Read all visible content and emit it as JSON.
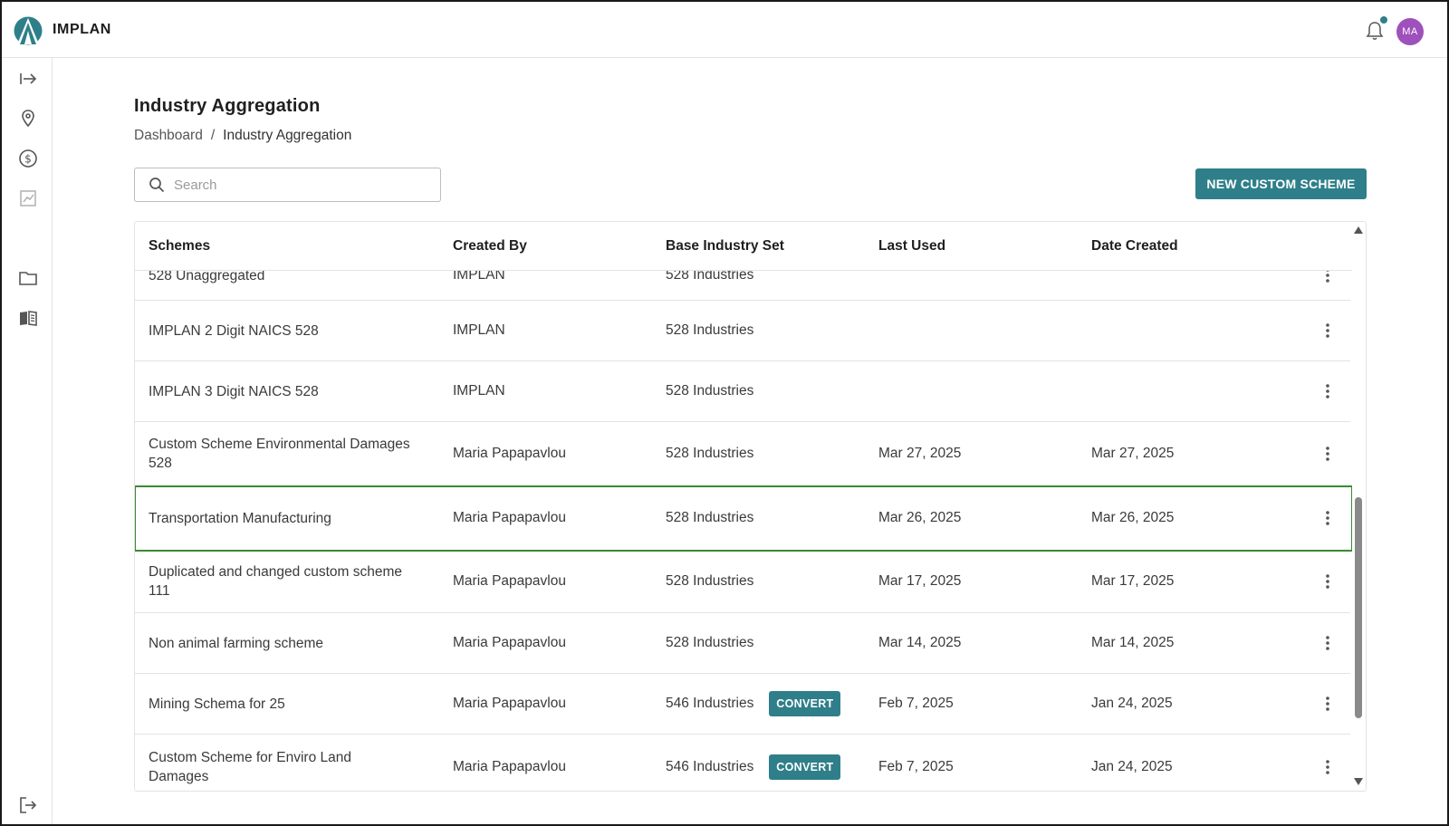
{
  "header": {
    "app_name": "IMPLAN",
    "avatar_initials": "MA",
    "accent_color": "#2f7f8a",
    "avatar_color": "#9e50bd"
  },
  "sidebar": {
    "items": [
      {
        "icon": "expand-sidebar-icon"
      },
      {
        "icon": "map-pin-icon"
      },
      {
        "icon": "dollar-circle-icon"
      },
      {
        "icon": "chart-icon"
      },
      {
        "icon": "folder-icon"
      },
      {
        "icon": "book-icon"
      },
      {
        "icon": "logout-icon"
      }
    ]
  },
  "page": {
    "title": "Industry Aggregation",
    "breadcrumb": {
      "root": "Dashboard",
      "separator": "/",
      "current": "Industry Aggregation"
    },
    "search_placeholder": "Search",
    "new_button_label": "NEW CUSTOM SCHEME"
  },
  "table": {
    "columns": [
      "Schemes",
      "Created By",
      "Base Industry Set",
      "Last Used",
      "Date Created"
    ],
    "convert_label": "CONVERT",
    "rows": [
      {
        "scheme": "528 Unaggregated",
        "created_by": "IMPLAN",
        "base": "528 Industries",
        "last_used": "",
        "date_created": ""
      },
      {
        "scheme": "IMPLAN 2 Digit NAICS 528",
        "created_by": "IMPLAN",
        "base": "528 Industries",
        "last_used": "",
        "date_created": ""
      },
      {
        "scheme": "IMPLAN 3 Digit NAICS 528",
        "created_by": "IMPLAN",
        "base": "528 Industries",
        "last_used": "",
        "date_created": ""
      },
      {
        "scheme": "Custom Scheme Environmental Damages 528",
        "created_by": "Maria Papapavlou",
        "base": "528 Industries",
        "last_used": "Mar 27, 2025",
        "date_created": "Mar 27, 2025"
      },
      {
        "scheme": "Transportation Manufacturing",
        "created_by": "Maria Papapavlou",
        "base": "528 Industries",
        "last_used": "Mar 26, 2025",
        "date_created": "Mar 26, 2025",
        "selected": true
      },
      {
        "scheme": "Duplicated and changed custom scheme 111",
        "created_by": "Maria Papapavlou",
        "base": "528 Industries",
        "last_used": "Mar 17, 2025",
        "date_created": "Mar 17, 2025"
      },
      {
        "scheme": "Non animal farming scheme",
        "created_by": "Maria Papapavlou",
        "base": "528 Industries",
        "last_used": "Mar 14, 2025",
        "date_created": "Mar 14, 2025"
      },
      {
        "scheme": "Mining Schema for 25",
        "created_by": "Maria Papapavlou",
        "base": "546 Industries",
        "convert": true,
        "last_used": "Feb 7, 2025",
        "date_created": "Jan 24, 2025"
      },
      {
        "scheme": "Custom Scheme for Enviro Land Damages",
        "created_by": "Maria Papapavlou",
        "base": "546 Industries",
        "convert": true,
        "last_used": "Feb 7, 2025",
        "date_created": "Jan 24, 2025"
      }
    ]
  }
}
